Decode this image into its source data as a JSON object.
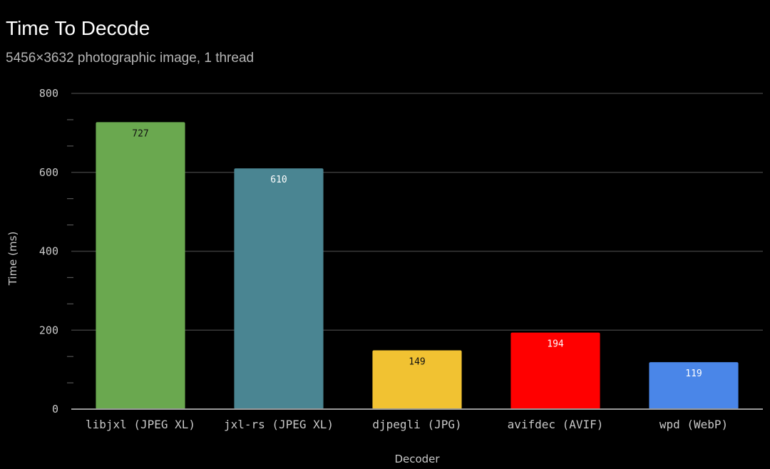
{
  "chart_data": {
    "type": "bar",
    "title": "Time To Decode",
    "subtitle": "5456×3632 photographic image, 1 thread",
    "xlabel": "Decoder",
    "ylabel": "Time (ms)",
    "ylim": [
      0,
      800
    ],
    "yticks": [
      "0",
      "200",
      "400",
      "600",
      "800"
    ],
    "grid": true,
    "legend": "none",
    "categories": [
      "libjxl (JPEG XL)",
      "jxl-rs (JPEG XL)",
      "djpegli (JPG)",
      "avifdec (AVIF)",
      "wpd (WebP)"
    ],
    "values": [
      727,
      610,
      149,
      194,
      119
    ],
    "data_labels": [
      "727",
      "610",
      "149",
      "194",
      "119"
    ],
    "colors": [
      "#6aa84f",
      "#4a8592",
      "#f1c232",
      "#ff0000",
      "#4a86e8"
    ],
    "label_colors": [
      "#111111",
      "#ffffff",
      "#111111",
      "#ffffff",
      "#ffffff"
    ]
  }
}
